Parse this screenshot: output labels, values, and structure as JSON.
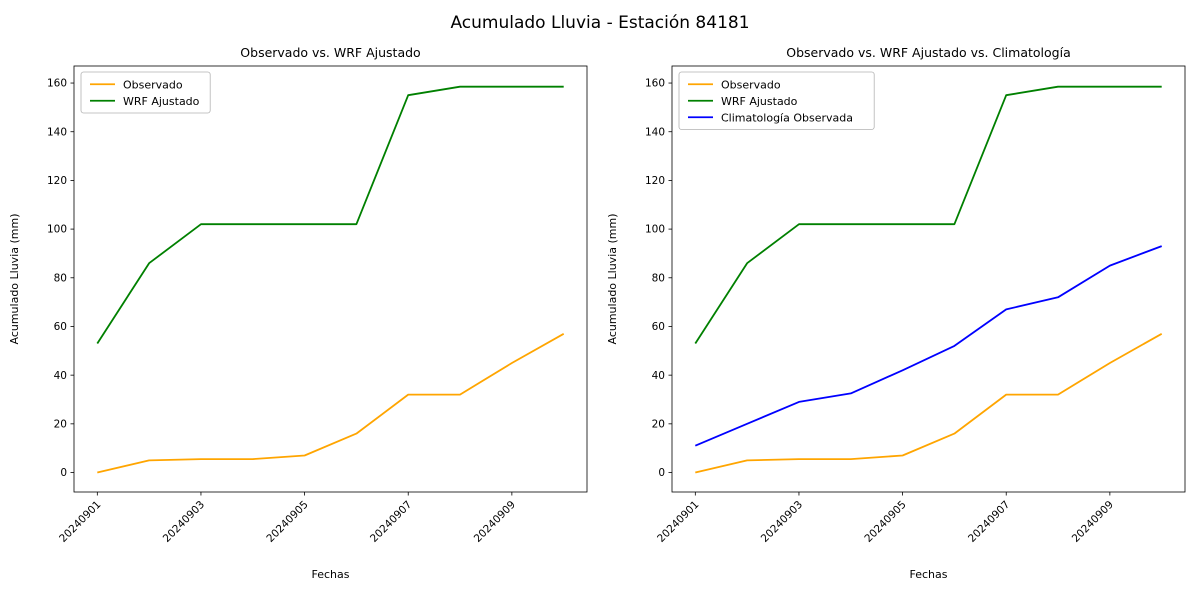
{
  "figure": {
    "title": "Acumulado Lluvia - Estación 84181",
    "background": "#ffffff"
  },
  "chart_data": [
    {
      "type": "line",
      "title": "Observado vs. WRF Ajustado",
      "xlabel": "Fechas",
      "ylabel": "Acumulado Lluvia (mm)",
      "x": [
        "20240901",
        "20240902",
        "20240903",
        "20240904",
        "20240905",
        "20240906",
        "20240907",
        "20240908",
        "20240909",
        "20240910"
      ],
      "xticks": {
        "positions": [
          0,
          2,
          4,
          6,
          8
        ],
        "labels": [
          "20240901",
          "20240903",
          "20240905",
          "20240907",
          "20240909"
        ]
      },
      "yticks": [
        0,
        20,
        40,
        60,
        80,
        100,
        120,
        140,
        160
      ],
      "ylim": [
        -8,
        167
      ],
      "grid": false,
      "legend_position": "upper left",
      "series": [
        {
          "name": "Observado",
          "color": "#ffa500",
          "values": [
            0,
            5,
            5.5,
            5.5,
            7,
            16,
            32,
            32,
            45,
            57
          ]
        },
        {
          "name": "WRF Ajustado",
          "color": "#008000",
          "values": [
            53,
            86,
            102,
            102,
            102,
            102,
            155,
            158.5,
            158.5,
            158.5
          ]
        }
      ]
    },
    {
      "type": "line",
      "title": "Observado vs. WRF Ajustado vs. Climatología",
      "xlabel": "Fechas",
      "ylabel": "Acumulado Lluvia (mm)",
      "x": [
        "20240901",
        "20240902",
        "20240903",
        "20240904",
        "20240905",
        "20240906",
        "20240907",
        "20240908",
        "20240909",
        "20240910"
      ],
      "xticks": {
        "positions": [
          0,
          2,
          4,
          6,
          8
        ],
        "labels": [
          "20240901",
          "20240903",
          "20240905",
          "20240907",
          "20240909"
        ]
      },
      "yticks": [
        0,
        20,
        40,
        60,
        80,
        100,
        120,
        140,
        160
      ],
      "ylim": [
        -8,
        167
      ],
      "grid": false,
      "legend_position": "upper left",
      "series": [
        {
          "name": "Observado",
          "color": "#ffa500",
          "values": [
            0,
            5,
            5.5,
            5.5,
            7,
            16,
            32,
            32,
            45,
            57
          ]
        },
        {
          "name": "WRF Ajustado",
          "color": "#008000",
          "values": [
            53,
            86,
            102,
            102,
            102,
            102,
            155,
            158.5,
            158.5,
            158.5
          ]
        },
        {
          "name": "Climatología Observada",
          "color": "#0000ff",
          "values": [
            11,
            20,
            29,
            32.5,
            42,
            52,
            67,
            72,
            85,
            93
          ]
        }
      ]
    }
  ]
}
